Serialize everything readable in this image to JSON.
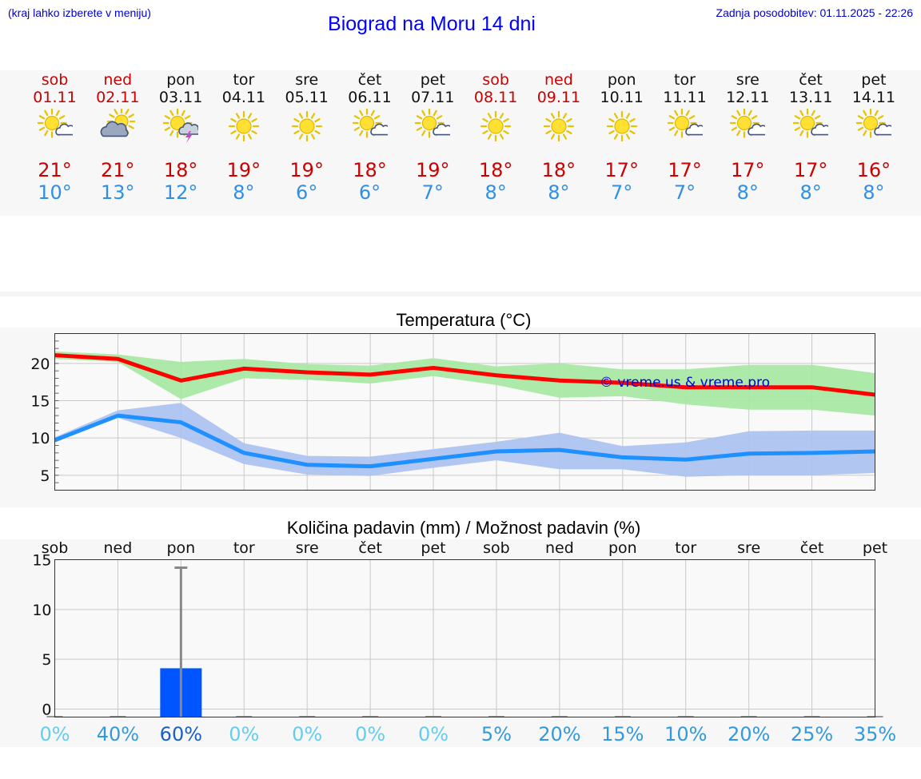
{
  "header": {
    "left_note": "(kraj lahko izberete v meniju)",
    "title": "Biograd na Moru 14 dni",
    "updated": "Zadnja posodobitev: 01.11.2025 - 22:26"
  },
  "days": [
    {
      "name": "sob",
      "date": "01.11",
      "weekend": true,
      "icon": "sun-cloud-icon",
      "tmax": "21°",
      "tmin": "10°"
    },
    {
      "name": "ned",
      "date": "02.11",
      "weekend": true,
      "icon": "cloud-sun-icon",
      "tmax": "21°",
      "tmin": "13°"
    },
    {
      "name": "pon",
      "date": "03.11",
      "weekend": false,
      "icon": "sun-thunder-icon",
      "tmax": "18°",
      "tmin": "12°"
    },
    {
      "name": "tor",
      "date": "04.11",
      "weekend": false,
      "icon": "sun-icon",
      "tmax": "19°",
      "tmin": "8°"
    },
    {
      "name": "sre",
      "date": "05.11",
      "weekend": false,
      "icon": "sun-icon",
      "tmax": "19°",
      "tmin": "6°"
    },
    {
      "name": "čet",
      "date": "06.11",
      "weekend": false,
      "icon": "sun-cloud-icon",
      "tmax": "18°",
      "tmin": "6°"
    },
    {
      "name": "pet",
      "date": "07.11",
      "weekend": false,
      "icon": "sun-cloud-icon",
      "tmax": "19°",
      "tmin": "7°"
    },
    {
      "name": "sob",
      "date": "08.11",
      "weekend": true,
      "icon": "sun-icon",
      "tmax": "18°",
      "tmin": "8°"
    },
    {
      "name": "ned",
      "date": "09.11",
      "weekend": true,
      "icon": "sun-icon",
      "tmax": "18°",
      "tmin": "8°"
    },
    {
      "name": "pon",
      "date": "10.11",
      "weekend": false,
      "icon": "sun-icon",
      "tmax": "17°",
      "tmin": "7°"
    },
    {
      "name": "tor",
      "date": "11.11",
      "weekend": false,
      "icon": "sun-cloud-icon",
      "tmax": "17°",
      "tmin": "7°"
    },
    {
      "name": "sre",
      "date": "12.11",
      "weekend": false,
      "icon": "sun-cloud-icon",
      "tmax": "17°",
      "tmin": "8°"
    },
    {
      "name": "čet",
      "date": "13.11",
      "weekend": false,
      "icon": "sun-cloud-icon",
      "tmax": "17°",
      "tmin": "8°"
    },
    {
      "name": "pet",
      "date": "14.11",
      "weekend": false,
      "icon": "sun-cloud-icon",
      "tmax": "16°",
      "tmin": "8°"
    }
  ],
  "colors": {
    "max_line": "#ff0000",
    "max_band": "#a9e8a4",
    "min_line": "#1e90ff",
    "min_band": "#adc4f0",
    "bar": "#0055ff",
    "whisker": "#888888",
    "grid": "#c8c8c8",
    "watermark": "#0000dd"
  },
  "chart_data": [
    {
      "type": "line",
      "title": "Temperatura (°C)",
      "watermark": "© vreme.us & vreme.pro",
      "x": [
        0,
        1,
        2,
        3,
        4,
        5,
        6,
        7,
        8,
        9,
        10,
        11,
        12,
        13
      ],
      "ylim": [
        3,
        24
      ],
      "yticks": [
        5,
        10,
        15,
        20
      ],
      "series": [
        {
          "name": "max",
          "values": [
            21.1,
            20.6,
            17.7,
            19.3,
            18.8,
            18.5,
            19.4,
            18.4,
            17.7,
            17.4,
            16.8,
            16.8,
            16.8,
            15.8
          ],
          "band_low": [
            20.6,
            20.2,
            15.2,
            18.0,
            17.8,
            17.3,
            18.3,
            17.1,
            15.4,
            15.6,
            14.5,
            13.8,
            13.8,
            13.0
          ],
          "band_high": [
            21.6,
            21.2,
            20.2,
            20.6,
            19.9,
            19.7,
            20.7,
            19.6,
            20.0,
            19.2,
            19.2,
            19.8,
            19.8,
            18.7
          ]
        },
        {
          "name": "min",
          "values": [
            9.7,
            13.0,
            12.1,
            8.0,
            6.4,
            6.2,
            7.2,
            8.2,
            8.4,
            7.4,
            7.1,
            7.9,
            8.0,
            8.2
          ],
          "band_low": [
            9.4,
            12.7,
            10.0,
            6.5,
            5.1,
            4.9,
            6.0,
            7.0,
            5.8,
            5.8,
            4.8,
            5.0,
            5.0,
            5.3
          ],
          "band_high": [
            10.1,
            13.7,
            14.7,
            9.3,
            7.6,
            7.5,
            8.5,
            9.5,
            10.7,
            8.9,
            9.4,
            10.9,
            11.0,
            11.0
          ]
        }
      ]
    },
    {
      "type": "bar",
      "title": "Količina padavin (mm) / Možnost padavin (%)",
      "categories": [
        "sob",
        "ned",
        "pon",
        "tor",
        "sre",
        "čet",
        "pet",
        "sob",
        "ned",
        "pon",
        "tor",
        "sre",
        "čet",
        "pet"
      ],
      "values": [
        0,
        0,
        4.1,
        0,
        0,
        0,
        0,
        0,
        0,
        0,
        0,
        0,
        0,
        0
      ],
      "whisker_high": [
        0,
        0,
        14.2,
        0,
        0,
        0,
        0,
        0,
        0,
        0,
        0,
        0,
        0,
        0
      ],
      "probability": [
        "0%",
        "40%",
        "60%",
        "0%",
        "0%",
        "0%",
        "0%",
        "5%",
        "20%",
        "15%",
        "10%",
        "20%",
        "25%",
        "35%"
      ],
      "prob_values": [
        0,
        40,
        60,
        0,
        0,
        0,
        0,
        5,
        20,
        15,
        10,
        20,
        25,
        35
      ],
      "ylim": [
        -0.8,
        15
      ],
      "yticks": [
        0,
        5,
        10,
        15
      ]
    }
  ]
}
